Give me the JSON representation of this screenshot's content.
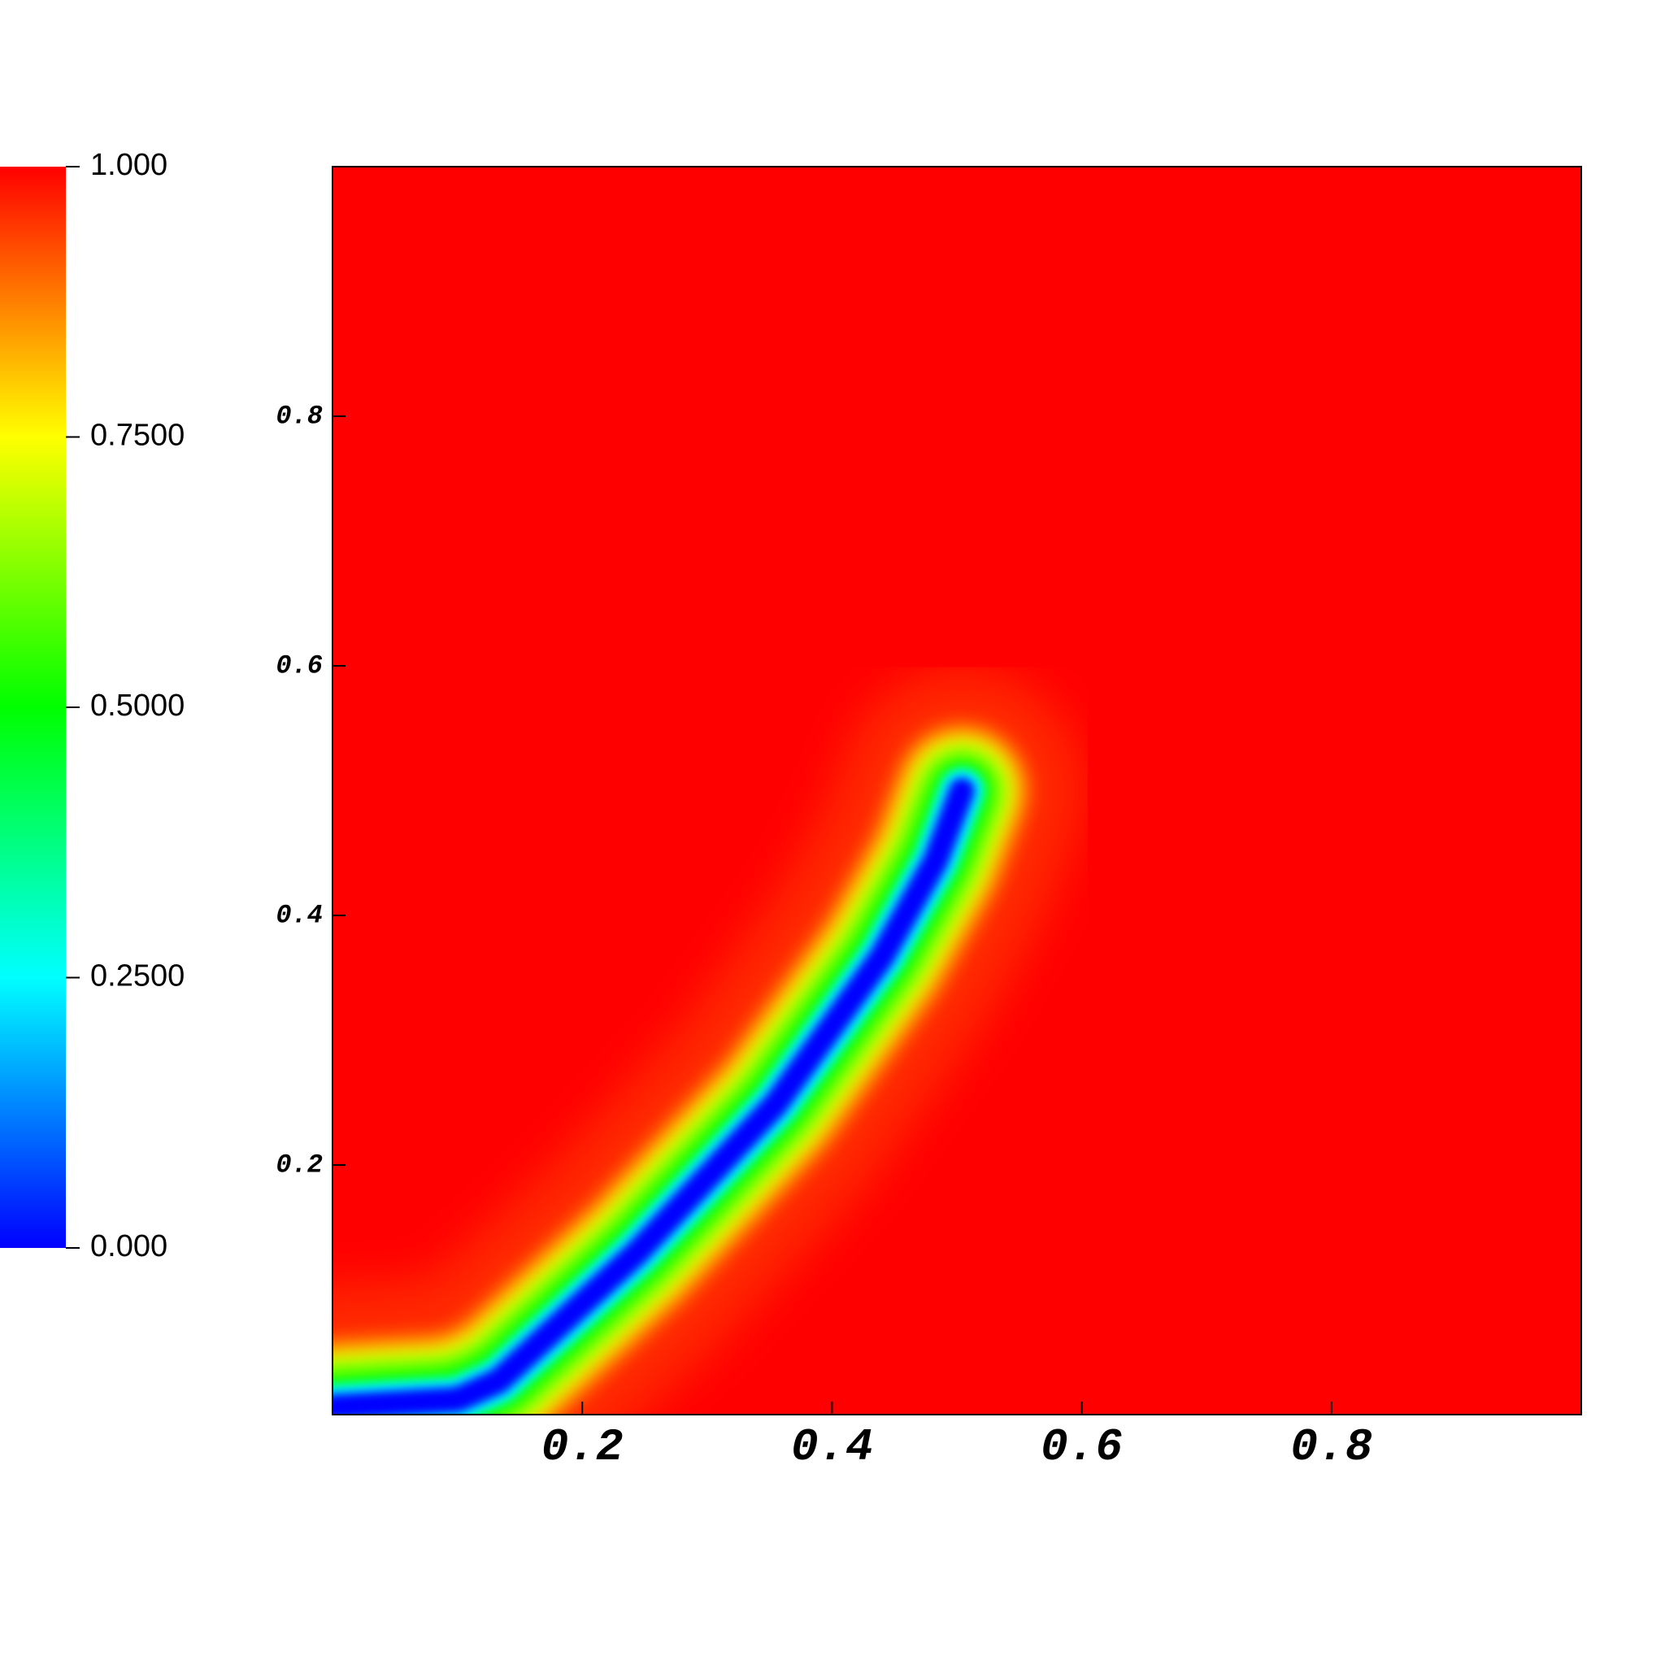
{
  "chart_data": {
    "type": "field",
    "xlim": [
      0,
      1
    ],
    "ylim": [
      0,
      1
    ],
    "xticks": [
      0.2,
      0.4,
      0.6,
      0.8
    ],
    "yticks": [
      0.2,
      0.4,
      0.6,
      0.8
    ],
    "background_value": 1,
    "clim": [
      0,
      1
    ],
    "colormap": [
      "#0000ff",
      "#00ffff",
      "#00ff00",
      "#ffff00",
      "#ff0000"
    ],
    "colorbar_ticks": [
      {
        "value": 1,
        "label": "1.000"
      },
      {
        "value": 0.75,
        "label": "0.7500"
      },
      {
        "value": 0.5,
        "label": "0.5000"
      },
      {
        "value": 0.25,
        "label": "0.2500"
      },
      {
        "value": 0,
        "label": "0.000"
      }
    ],
    "crack": {
      "value": 0,
      "x": [
        0,
        0.1,
        0.133,
        0.244,
        0.355,
        0.44,
        0.483,
        0.504
      ],
      "y": [
        0.006,
        0.012,
        0.027,
        0.13,
        0.249,
        0.367,
        0.444,
        0.5
      ]
    }
  }
}
